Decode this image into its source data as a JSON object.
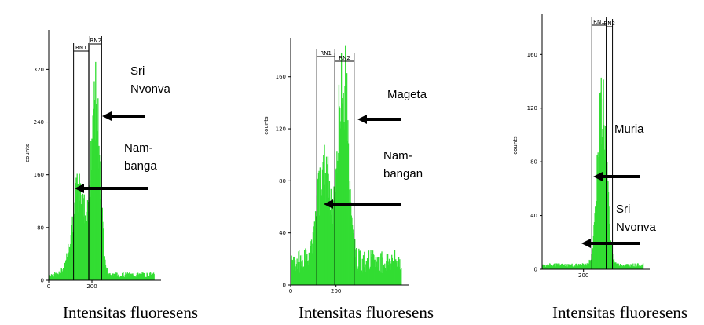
{
  "chart_data": [
    {
      "type": "histogram",
      "ylabel": "counts",
      "xlabel": "Intensitas fluoresens",
      "xlim": [
        0,
        520
      ],
      "ylim": [
        0,
        380
      ],
      "y_ticks": [
        {
          "v": 0,
          "t": "0"
        },
        {
          "v": 80,
          "t": "80"
        },
        {
          "v": 160,
          "t": "160"
        },
        {
          "v": 240,
          "t": "240"
        },
        {
          "v": 320,
          "t": "320"
        }
      ],
      "x_ticks": [
        {
          "v": 0,
          "t": "0"
        },
        {
          "v": 200,
          "t": "200"
        }
      ],
      "gates": [
        {
          "name": "RN1",
          "x1": 115,
          "x2": 185
        },
        {
          "name": "RN2",
          "x1": 190,
          "x2": 245
        }
      ],
      "annotations": [
        {
          "lines": [
            "Sri",
            "Nvonva"
          ],
          "arrow_x": 260,
          "arrow_y": 255
        },
        {
          "lines": [
            "Nam-",
            "banga"
          ],
          "arrow_x": 120,
          "arrow_y": 140
        }
      ],
      "peaks": [
        {
          "center": 140,
          "sigma": 32,
          "height": 130
        },
        {
          "center": 218,
          "sigma": 20,
          "height": 265
        }
      ],
      "baseline": 8
    },
    {
      "type": "histogram",
      "ylabel": "counts",
      "xlabel": "Intensitas fluoresens",
      "xlim": [
        0,
        520
      ],
      "ylim": [
        0,
        190
      ],
      "y_ticks": [
        {
          "v": 0,
          "t": "0"
        },
        {
          "v": 40,
          "t": "40"
        },
        {
          "v": 80,
          "t": "80"
        },
        {
          "v": 120,
          "t": "120"
        },
        {
          "v": 160,
          "t": "160"
        }
      ],
      "x_ticks": [
        {
          "v": 0,
          "t": "0"
        },
        {
          "v": 200,
          "t": "200"
        }
      ],
      "gates": [
        {
          "name": "RN1",
          "x1": 115,
          "x2": 195
        },
        {
          "name": "RN2",
          "x1": 195,
          "x2": 280
        }
      ],
      "annotations": [
        {
          "lines": [
            "Mageta"
          ],
          "arrow_x": 225,
          "arrow_y": 125
        },
        {
          "lines": [
            "Nam-",
            "bangan"
          ],
          "arrow_x": 125,
          "arrow_y": 60
        }
      ],
      "peaks": [
        {
          "center": 145,
          "sigma": 28,
          "height": 75
        },
        {
          "center": 232,
          "sigma": 22,
          "height": 150
        }
      ],
      "baseline": 18
    },
    {
      "type": "histogram",
      "ylabel": "counts",
      "xlabel": "Intensitas fluoresens",
      "xlim": [
        0,
        520
      ],
      "ylim": [
        0,
        190
      ],
      "y_ticks": [
        {
          "v": 0,
          "t": "0"
        },
        {
          "v": 40,
          "t": "40"
        },
        {
          "v": 80,
          "t": "80"
        },
        {
          "v": 120,
          "t": "120"
        },
        {
          "v": 160,
          "t": "160"
        }
      ],
      "x_ticks": [
        {
          "v": 200,
          "t": "200"
        }
      ],
      "gates": [
        {
          "name": "RN1",
          "x1": 240,
          "x2": 310
        },
        {
          "name": "RN2",
          "x1": 310,
          "x2": 340
        }
      ],
      "annotations": [
        {
          "lines": [
            "Muria"
          ],
          "arrow_x": 320,
          "arrow_y": 90
        },
        {
          "lines": [
            "Sri",
            "Nvonva"
          ],
          "arrow_x": 300,
          "arrow_y": 22
        }
      ],
      "peaks": [
        {
          "center": 290,
          "sigma": 22,
          "height": 120
        }
      ],
      "baseline": 3
    }
  ]
}
